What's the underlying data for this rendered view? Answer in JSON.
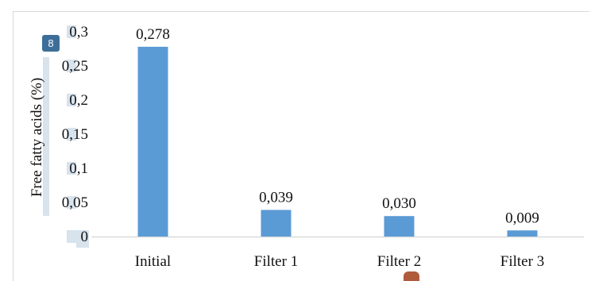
{
  "badge_number": "8",
  "chart_data": {
    "type": "bar",
    "title": "",
    "ylabel": "Free fatty acids (%)",
    "xlabel": "",
    "categories": [
      "Initial",
      "Filter 1",
      "Filter 2",
      "Filter 3"
    ],
    "values": [
      0.278,
      0.039,
      0.03,
      0.009
    ],
    "data_labels": [
      "0,278",
      "0,039",
      "0,030",
      "0,009"
    ],
    "ylim": [
      0,
      0.3
    ],
    "yticks": [
      0,
      0.05,
      0.1,
      0.15,
      0.2,
      0.25,
      0.3
    ],
    "ytick_labels": [
      "0",
      "0,05",
      "0,1",
      "0,15",
      "0,2",
      "0,25",
      "0,3"
    ],
    "grid": false,
    "colors": {
      "bar": "#5b9bd5",
      "axis": "#d9d9d9",
      "highlight": "#c9d9e7",
      "badge": "#3d6e99"
    }
  }
}
